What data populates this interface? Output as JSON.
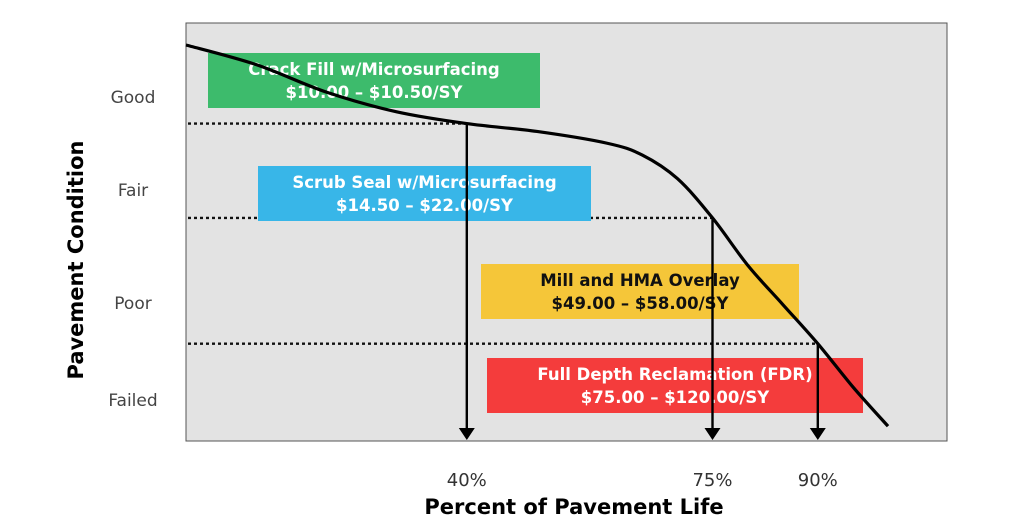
{
  "chart_data": {
    "type": "line",
    "title": "",
    "xlabel": "Percent of Pavement Life",
    "ylabel": "Pavement Condition",
    "y_categories": [
      "Good",
      "Fair",
      "Poor",
      "Failed"
    ],
    "x_ticks": [
      "40%",
      "75%",
      "90%"
    ],
    "x_tick_values": [
      40,
      75,
      90
    ],
    "curve": {
      "x": [
        0,
        10,
        20,
        30,
        40,
        50,
        60,
        65,
        70,
        75,
        80,
        85,
        90,
        95,
        100
      ],
      "y": [
        100,
        95,
        88,
        83,
        80,
        78,
        75,
        72,
        66,
        56,
        44,
        34,
        24,
        13,
        3
      ]
    },
    "thresholds": [
      {
        "condition": "Good/Fair",
        "x": 40,
        "y": 80
      },
      {
        "condition": "Fair/Poor",
        "x": 75,
        "y": 56
      },
      {
        "condition": "Poor/Failed",
        "x": 90,
        "y": 24
      }
    ],
    "treatments": [
      {
        "line1": "Crack Fill w/Microsurfacing",
        "line2": "$10.00 – $10.50/SY",
        "color": "#3dbb6c",
        "text_color": "#ffffff"
      },
      {
        "line1": "Scrub Seal w/Microsurfacing",
        "line2": "$14.50 – $22.00/SY",
        "color": "#38b6e8",
        "text_color": "#ffffff"
      },
      {
        "line1": "Mill and HMA Overlay",
        "line2": "$49.00 – $58.00/SY",
        "color": "#f5c639",
        "text_color": "#111111"
      },
      {
        "line1": "Full Depth Reclamation (FDR)",
        "line2": "$75.00 – $120.00/SY",
        "color": "#f43c3c",
        "text_color": "#ffffff"
      }
    ],
    "plot_background": "#e3e3e3",
    "grid": false,
    "legend": "none"
  }
}
